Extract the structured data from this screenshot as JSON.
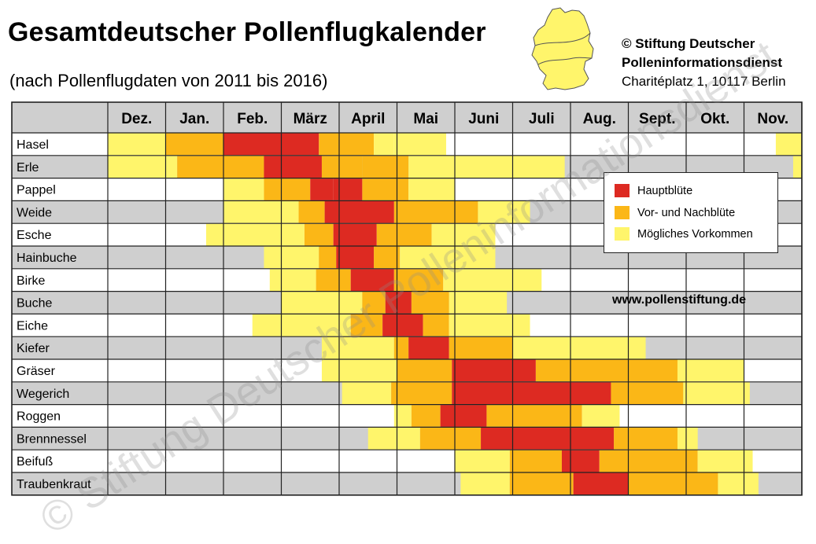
{
  "header": {
    "title": "Gesamtdeutscher Pollenflugkalender",
    "subtitle": "(nach Pollenflugdaten von 2011 bis 2016)",
    "credit_line1": "© Stiftung Deutscher",
    "credit_line2": "Polleninformationsdienst",
    "credit_line3": "Charitéplatz 1, 10117 Berlin"
  },
  "website": "www.pollenstiftung.de",
  "watermark": "© Stiftung Deutscher Polleninformationsdienst",
  "legend": [
    {
      "label": "Hauptblüte",
      "level": 3
    },
    {
      "label": "Vor- und Nachblüte",
      "level": 2
    },
    {
      "label": "Mögliches Vorkommen",
      "level": 1
    }
  ],
  "colors": {
    "level_3": "#dd2a22",
    "level_2": "#fbb717",
    "level_1": "#fff56b",
    "row_even": "#ffffff",
    "row_odd": "#cfcfcf",
    "header_bg": "#cfcfcf",
    "map_fill": "#fff56b"
  },
  "chart_data": {
    "type": "heatmap",
    "title": "Gesamtdeutscher Pollenflugkalender",
    "subtitle": "(nach Pollenflugdaten von 2011 bis 2016)",
    "months": [
      "Dez.",
      "Jan.",
      "Feb.",
      "März",
      "April",
      "Mai",
      "Juni",
      "Juli",
      "Aug.",
      "Sept.",
      "Okt.",
      "Nov."
    ],
    "levels": {
      "1": "Mögliches Vorkommen",
      "2": "Vor- und Nachblüte",
      "3": "Hauptblüte"
    },
    "rows": [
      {
        "name": "Hasel",
        "segments": [
          [
            0,
            1.0,
            1
          ],
          [
            1.0,
            2.0,
            2
          ],
          [
            2.0,
            3.65,
            3
          ],
          [
            3.65,
            4.0,
            2
          ],
          [
            4.0,
            4.6,
            2
          ],
          [
            4.6,
            4.95,
            1
          ],
          [
            4.95,
            5.85,
            1
          ],
          [
            11.55,
            12,
            1
          ]
        ]
      },
      {
        "name": "Erle",
        "segments": [
          [
            0,
            1.2,
            1
          ],
          [
            1.2,
            2.7,
            2
          ],
          [
            2.7,
            3.7,
            3
          ],
          [
            3.7,
            4.4,
            2
          ],
          [
            4.4,
            5.2,
            2
          ],
          [
            5.2,
            7.9,
            1
          ],
          [
            11.85,
            12,
            1
          ]
        ]
      },
      {
        "name": "Pappel",
        "segments": [
          [
            2.0,
            2.7,
            1
          ],
          [
            2.7,
            3.5,
            2
          ],
          [
            3.5,
            3.9,
            3
          ],
          [
            3.9,
            4.4,
            3
          ],
          [
            4.4,
            5.2,
            2
          ],
          [
            5.2,
            6.0,
            1
          ]
        ]
      },
      {
        "name": "Weide",
        "segments": [
          [
            2.0,
            3.3,
            1
          ],
          [
            3.3,
            3.75,
            2
          ],
          [
            3.75,
            4.95,
            3
          ],
          [
            4.95,
            6.4,
            2
          ],
          [
            6.4,
            7.3,
            1
          ]
        ]
      },
      {
        "name": "Esche",
        "segments": [
          [
            1.7,
            3.4,
            1
          ],
          [
            3.4,
            3.9,
            2
          ],
          [
            3.9,
            4.65,
            3
          ],
          [
            4.65,
            5.6,
            2
          ],
          [
            5.6,
            6.7,
            1
          ]
        ]
      },
      {
        "name": "Hainbuche",
        "segments": [
          [
            2.7,
            3.65,
            1
          ],
          [
            3.65,
            3.95,
            2
          ],
          [
            3.95,
            4.6,
            3
          ],
          [
            4.6,
            5.05,
            2
          ],
          [
            5.05,
            6.7,
            1
          ]
        ]
      },
      {
        "name": "Birke",
        "segments": [
          [
            2.8,
            3.6,
            1
          ],
          [
            3.6,
            4.2,
            2
          ],
          [
            4.2,
            4.95,
            3
          ],
          [
            4.95,
            5.8,
            2
          ],
          [
            5.8,
            7.5,
            1
          ]
        ]
      },
      {
        "name": "Buche",
        "segments": [
          [
            3.0,
            4.4,
            1
          ],
          [
            4.4,
            4.8,
            2
          ],
          [
            4.8,
            5.25,
            3
          ],
          [
            5.25,
            5.9,
            2
          ],
          [
            5.9,
            6.9,
            1
          ]
        ]
      },
      {
        "name": "Eiche",
        "segments": [
          [
            2.5,
            4.2,
            1
          ],
          [
            4.2,
            4.75,
            2
          ],
          [
            4.75,
            5.45,
            3
          ],
          [
            5.45,
            5.9,
            2
          ],
          [
            5.9,
            7.3,
            1
          ]
        ]
      },
      {
        "name": "Kiefer",
        "segments": [
          [
            3.7,
            4.95,
            1
          ],
          [
            4.95,
            5.2,
            2
          ],
          [
            5.2,
            5.9,
            3
          ],
          [
            5.9,
            7.0,
            2
          ],
          [
            7.0,
            9.3,
            1
          ]
        ]
      },
      {
        "name": "Gräser",
        "segments": [
          [
            3.7,
            5.0,
            1
          ],
          [
            5.0,
            5.95,
            2
          ],
          [
            5.95,
            7.4,
            3
          ],
          [
            7.4,
            9.85,
            2
          ],
          [
            9.85,
            11.0,
            1
          ]
        ]
      },
      {
        "name": "Wegerich",
        "segments": [
          [
            4.05,
            4.9,
            1
          ],
          [
            4.9,
            5.95,
            2
          ],
          [
            5.95,
            8.7,
            3
          ],
          [
            8.7,
            9.95,
            2
          ],
          [
            9.95,
            11.1,
            1
          ]
        ]
      },
      {
        "name": "Roggen",
        "segments": [
          [
            4.95,
            5.25,
            1
          ],
          [
            5.25,
            5.75,
            2
          ],
          [
            5.75,
            6.55,
            3
          ],
          [
            6.55,
            8.2,
            2
          ],
          [
            8.2,
            8.85,
            1
          ]
        ]
      },
      {
        "name": "Brennnessel",
        "segments": [
          [
            4.5,
            5.4,
            1
          ],
          [
            5.4,
            6.45,
            2
          ],
          [
            6.45,
            8.75,
            3
          ],
          [
            8.75,
            9.85,
            2
          ],
          [
            9.85,
            10.2,
            1
          ]
        ]
      },
      {
        "name": "Beifuß",
        "segments": [
          [
            6.0,
            6.95,
            1
          ],
          [
            6.95,
            7.85,
            2
          ],
          [
            7.85,
            8.5,
            3
          ],
          [
            8.5,
            10.2,
            2
          ],
          [
            10.2,
            11.15,
            1
          ]
        ]
      },
      {
        "name": "Traubenkraut",
        "segments": [
          [
            6.1,
            6.95,
            1
          ],
          [
            6.95,
            8.05,
            2
          ],
          [
            8.05,
            9.0,
            3
          ],
          [
            9.0,
            10.55,
            2
          ],
          [
            10.55,
            11.25,
            1
          ]
        ]
      }
    ]
  }
}
